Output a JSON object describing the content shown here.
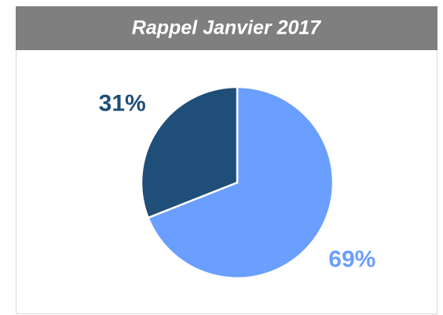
{
  "chart_data": {
    "type": "pie",
    "title": "Rappel Janvier 2017",
    "values": [
      69,
      31
    ],
    "value_labels": [
      "69%",
      "31%"
    ],
    "colors": [
      "#6a9eff",
      "#1f4e79"
    ]
  }
}
